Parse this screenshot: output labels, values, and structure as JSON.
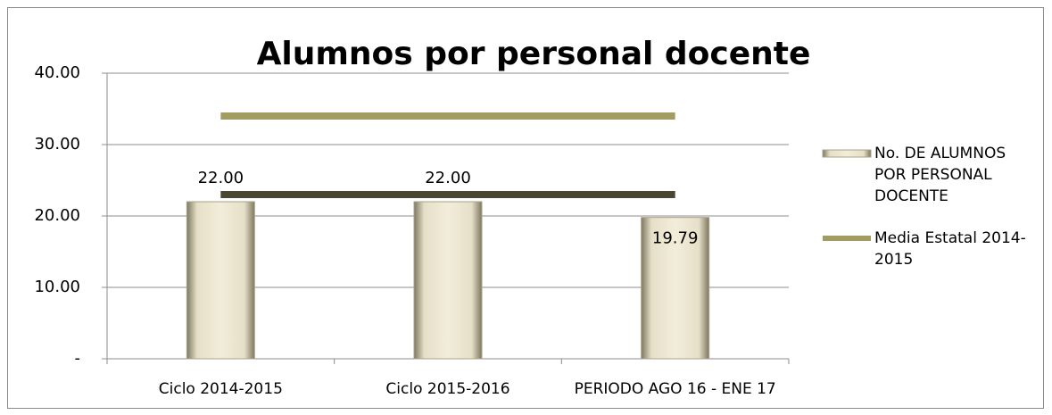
{
  "chart_data": {
    "type": "bar",
    "title": "Alumnos por personal docente",
    "categories": [
      "Ciclo 2014-2015",
      "Ciclo 2015-2016",
      "PERIODO AGO 16 - ENE 17"
    ],
    "series": [
      {
        "name": "No. DE ALUMNOS POR PERSONAL DOCENTE",
        "type": "bar",
        "color": "#ece6d0",
        "values": [
          22,
          22,
          19.79
        ],
        "value_labels": [
          "22.00",
          "22.00",
          "19.79"
        ]
      },
      {
        "name": "Media Estatal 2014-2015",
        "type": "line",
        "color": "#a39c62",
        "values": [
          34,
          34,
          34
        ]
      },
      {
        "type": "line",
        "color": "#4a4632",
        "values": [
          23,
          23,
          23
        ]
      }
    ],
    "ylim": [
      0,
      40
    ],
    "yticks": [
      {
        "value": 0,
        "label": "-"
      },
      {
        "value": 10,
        "label": "10.00"
      },
      {
        "value": 20,
        "label": "20.00"
      },
      {
        "value": 30,
        "label": "30.00"
      },
      {
        "value": 40,
        "label": "40.00"
      }
    ],
    "grid": true,
    "legend": "right"
  }
}
